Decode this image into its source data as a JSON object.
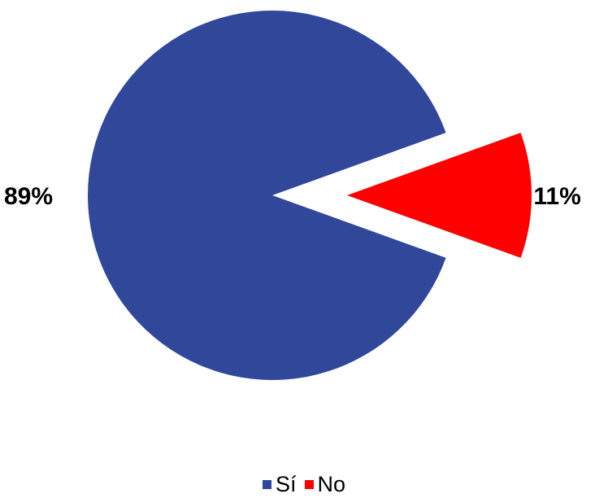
{
  "chart_data": {
    "type": "pie",
    "title": "",
    "categories": [
      "Sí",
      "No"
    ],
    "values": [
      89,
      11
    ],
    "labels": [
      "89%",
      "11%"
    ],
    "colors": [
      "#30479A",
      "#FF0000"
    ],
    "exploded": [
      false,
      true
    ],
    "legend": {
      "position": "bottom",
      "entries": [
        "Sí",
        "No"
      ]
    }
  }
}
